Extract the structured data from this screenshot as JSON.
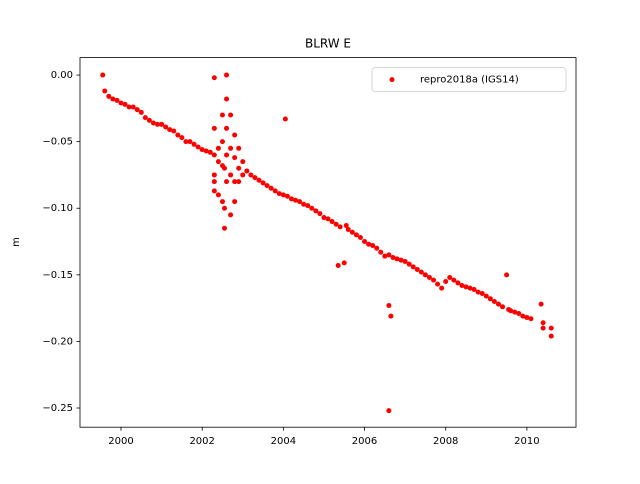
{
  "chart_data": {
    "type": "scatter",
    "title": "BLRW E",
    "y_label": "m",
    "xlim": [
      1998.99,
      2011.21
    ],
    "ylim": [
      -0.2644,
      0.0131
    ],
    "xticks": [
      2000,
      2002,
      2004,
      2006,
      2008,
      2010
    ],
    "yticks": [
      {
        "value": -0.25,
        "label": "−0.25"
      },
      {
        "value": -0.2,
        "label": "−0.20"
      },
      {
        "value": -0.15,
        "label": "−0.15"
      },
      {
        "value": -0.1,
        "label": "−0.10"
      },
      {
        "value": -0.05,
        "label": "−0.05"
      },
      {
        "value": 0,
        "label": "0.00"
      }
    ],
    "legend": "upper right",
    "series": [
      {
        "name": "repro2018a (IGS14)",
        "color": "#ff0000",
        "x": [
          1999.55,
          1999.6,
          1999.7,
          1999.8,
          1999.9,
          2000.0,
          2000.1,
          2000.2,
          2000.3,
          2000.4,
          2000.5,
          2000.6,
          2000.7,
          2000.8,
          2000.9,
          2001.0,
          2001.1,
          2001.2,
          2001.3,
          2001.4,
          2001.5,
          2001.6,
          2001.7,
          2001.8,
          2001.9,
          2002.0,
          2002.1,
          2002.2,
          2002.3,
          2002.3,
          2002.3,
          2002.3,
          2002.3,
          2002.3,
          2002.4,
          2002.4,
          2002.4,
          2002.5,
          2002.5,
          2002.5,
          2002.5,
          2002.55,
          2002.55,
          2002.55,
          2002.6,
          2002.6,
          2002.6,
          2002.6,
          2002.6,
          2002.7,
          2002.7,
          2002.7,
          2002.7,
          2002.8,
          2002.8,
          2002.8,
          2002.8,
          2002.9,
          2002.9,
          2002.9,
          2003.0,
          2003.0,
          2003.1,
          2003.2,
          2003.3,
          2003.4,
          2003.5,
          2003.6,
          2003.7,
          2003.8,
          2003.9,
          2004.0,
          2004.05,
          2004.1,
          2004.2,
          2004.3,
          2004.4,
          2004.5,
          2004.6,
          2004.7,
          2004.8,
          2004.9,
          2005.0,
          2005.1,
          2005.2,
          2005.3,
          2005.35,
          2005.5,
          2005.4,
          2005.55,
          2005.6,
          2005.7,
          2005.8,
          2005.9,
          2006.0,
          2006.1,
          2006.2,
          2006.3,
          2006.4,
          2006.5,
          2006.6,
          2006.6,
          2006.6,
          2006.65,
          2006.7,
          2006.8,
          2006.9,
          2007.0,
          2007.1,
          2007.2,
          2007.3,
          2007.4,
          2007.5,
          2007.6,
          2007.7,
          2007.8,
          2007.9,
          2008.0,
          2008.1,
          2008.2,
          2008.3,
          2008.4,
          2008.5,
          2008.6,
          2008.7,
          2008.8,
          2008.9,
          2009.0,
          2009.1,
          2009.2,
          2009.3,
          2009.4,
          2009.5,
          2009.55,
          2009.6,
          2009.7,
          2009.8,
          2009.9,
          2010.0,
          2010.1,
          2010.35,
          2010.4,
          2010.4,
          2010.6,
          2010.6
        ],
        "values": [
          0.0,
          -0.012,
          -0.016,
          -0.018,
          -0.019,
          -0.021,
          -0.022,
          -0.024,
          -0.024,
          -0.026,
          -0.028,
          -0.032,
          -0.034,
          -0.036,
          -0.037,
          -0.037,
          -0.039,
          -0.041,
          -0.042,
          -0.045,
          -0.047,
          -0.05,
          -0.05,
          -0.052,
          -0.054,
          -0.056,
          -0.057,
          -0.058,
          -0.002,
          -0.04,
          -0.06,
          -0.075,
          -0.08,
          -0.087,
          -0.055,
          -0.065,
          -0.09,
          -0.03,
          -0.05,
          -0.068,
          -0.095,
          -0.115,
          -0.1,
          -0.07,
          0.0,
          -0.018,
          -0.04,
          -0.06,
          -0.08,
          -0.03,
          -0.055,
          -0.075,
          -0.105,
          -0.045,
          -0.062,
          -0.08,
          -0.095,
          -0.055,
          -0.07,
          -0.08,
          -0.065,
          -0.075,
          -0.072,
          -0.075,
          -0.077,
          -0.079,
          -0.081,
          -0.083,
          -0.085,
          -0.087,
          -0.089,
          -0.09,
          -0.033,
          -0.091,
          -0.093,
          -0.094,
          -0.095,
          -0.097,
          -0.098,
          -0.1,
          -0.102,
          -0.104,
          -0.107,
          -0.108,
          -0.11,
          -0.112,
          -0.143,
          -0.141,
          -0.114,
          -0.113,
          -0.116,
          -0.118,
          -0.12,
          -0.122,
          -0.125,
          -0.127,
          -0.128,
          -0.13,
          -0.133,
          -0.136,
          -0.173,
          -0.252,
          -0.135,
          -0.181,
          -0.137,
          -0.138,
          -0.139,
          -0.14,
          -0.142,
          -0.144,
          -0.146,
          -0.148,
          -0.15,
          -0.152,
          -0.154,
          -0.157,
          -0.16,
          -0.155,
          -0.152,
          -0.154,
          -0.156,
          -0.158,
          -0.159,
          -0.16,
          -0.161,
          -0.163,
          -0.164,
          -0.166,
          -0.168,
          -0.17,
          -0.172,
          -0.174,
          -0.15,
          -0.176,
          -0.177,
          -0.178,
          -0.179,
          -0.181,
          -0.182,
          -0.183,
          -0.172,
          -0.186,
          -0.19,
          -0.19,
          -0.196
        ]
      }
    ]
  }
}
